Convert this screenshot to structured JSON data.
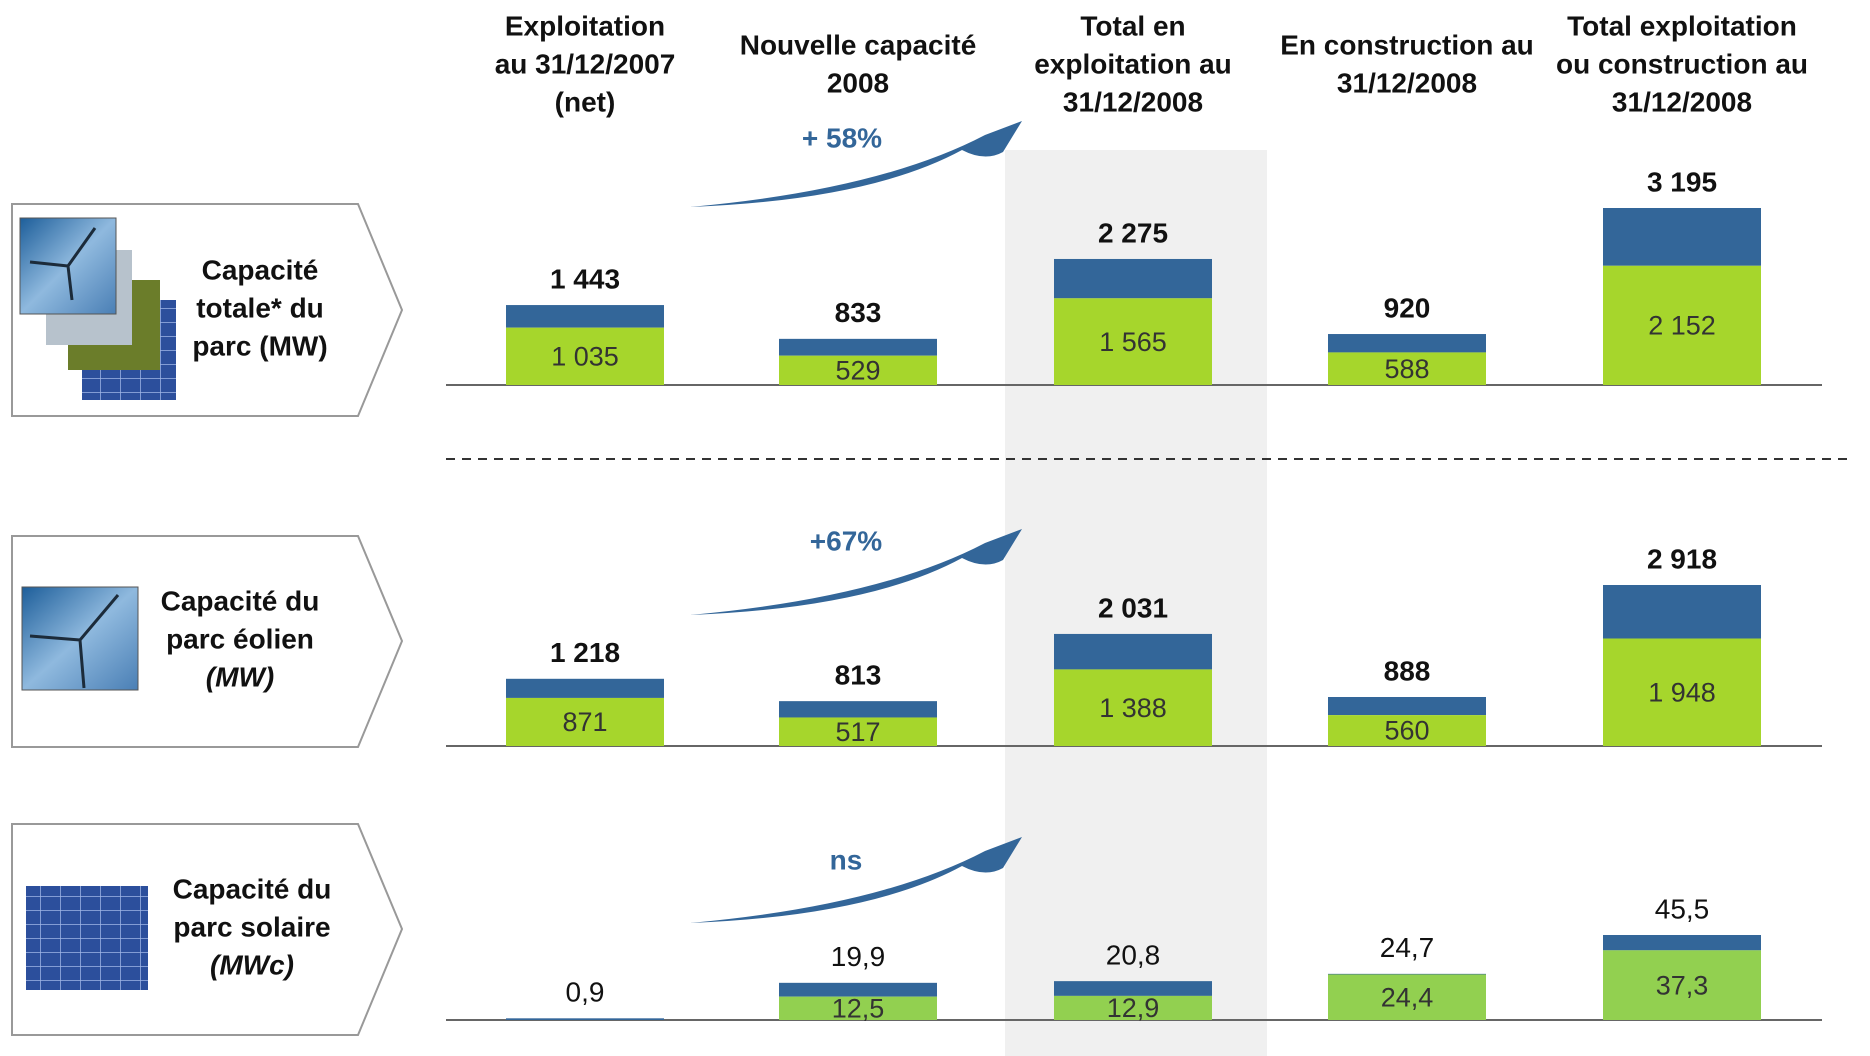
{
  "columns": [
    [
      "Exploitation",
      "au 31/12/2007",
      "(net)"
    ],
    [
      "Nouvelle capacité",
      "2008"
    ],
    [
      "Total en",
      "exploitation au",
      "31/12/2008"
    ],
    [
      "En construction au",
      "31/12/2008"
    ],
    [
      "Total exploitation",
      "ou construction au",
      "31/12/2008"
    ]
  ],
  "chart_data": [
    {
      "type": "stacked-bar",
      "title": [
        "Capacité",
        "totale* du",
        "parc (MW)"
      ],
      "annotation": "+ 58%",
      "totals": [
        1443,
        833,
        2275,
        920,
        3195
      ],
      "total_labels": [
        "1 443",
        "833",
        "2 275",
        "920",
        "3 195"
      ],
      "values": [
        1035,
        529,
        1565,
        588,
        2152
      ],
      "value_labels": [
        "1 035",
        "529",
        "1 565",
        "588",
        "2 152"
      ],
      "colors": {
        "total": "#336699",
        "value": "#a6d62c"
      },
      "bold_labels": true
    },
    {
      "type": "stacked-bar",
      "title": [
        "Capacité du",
        "parc éolien",
        "(MW)"
      ],
      "annotation": "+67%",
      "totals": [
        1218,
        813,
        2031,
        888,
        2918
      ],
      "total_labels": [
        "1 218",
        "813",
        "2 031",
        "888",
        "2 918"
      ],
      "values": [
        871,
        517,
        1388,
        560,
        1948
      ],
      "value_labels": [
        "871",
        "517",
        "1 388",
        "560",
        "1 948"
      ],
      "colors": {
        "total": "#336699",
        "value": "#a6d62c"
      },
      "bold_labels": true
    },
    {
      "type": "stacked-bar",
      "title": [
        "Capacité du",
        "parc solaire",
        "(MWc)"
      ],
      "annotation": "ns",
      "totals": [
        0.9,
        19.9,
        20.8,
        24.7,
        45.5
      ],
      "total_labels": [
        "0,9",
        "19,9",
        "20,8",
        "24,7",
        "45,5"
      ],
      "values": [
        null,
        12.5,
        12.9,
        24.4,
        37.3
      ],
      "value_labels": [
        null,
        "12,5",
        "12,9",
        "24,4",
        "37,3"
      ],
      "colors": {
        "total": "#336699",
        "value": "#92d050"
      },
      "bold_labels": false
    }
  ]
}
